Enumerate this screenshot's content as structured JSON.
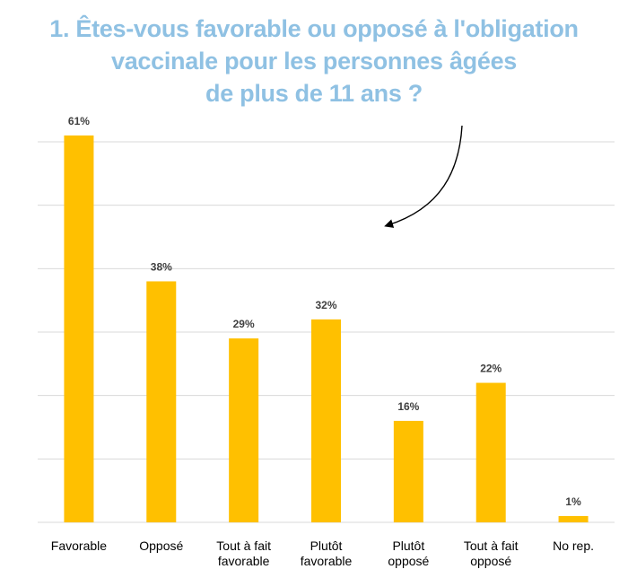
{
  "title": {
    "lines": [
      "1. Êtes-vous favorable ou opposé à l'obligation",
      "vaccinale pour les personnes âgées",
      "de plus de 11 ans ?"
    ]
  },
  "chart_data": {
    "type": "bar",
    "title": "1. Êtes-vous favorable ou opposé à l'obligation vaccinale pour les personnes âgées de plus de 11 ans ?",
    "categories": [
      [
        "Favorable"
      ],
      [
        "Opposé"
      ],
      [
        "Tout à fait",
        "favorable"
      ],
      [
        "Plutôt",
        "favorable"
      ],
      [
        "Plutôt",
        "opposé"
      ],
      [
        "Tout à fait",
        "opposé"
      ],
      [
        "No rep."
      ]
    ],
    "values": [
      61,
      38,
      29,
      32,
      16,
      22,
      1
    ],
    "value_labels": [
      "61%",
      "38%",
      "29%",
      "32%",
      "16%",
      "22%",
      "1%"
    ],
    "ylim": [
      0,
      60
    ],
    "grid": true,
    "bar_color": "#ffc000",
    "title_color": "#8fc1e3"
  }
}
